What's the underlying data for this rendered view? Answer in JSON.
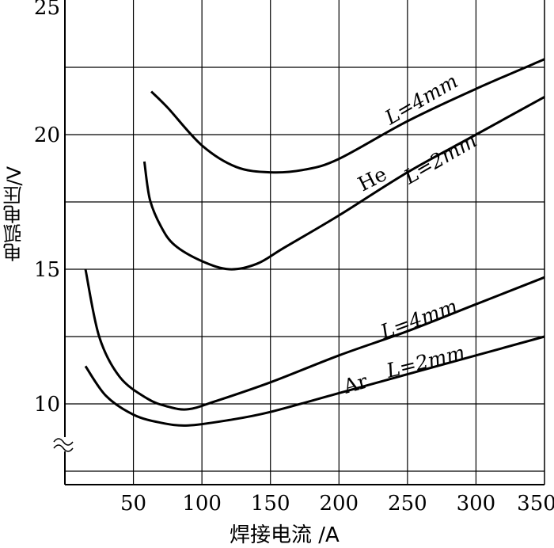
{
  "chart_data": {
    "type": "line",
    "xlabel": "焊接电流 /A",
    "ylabel": "电弧电压/V",
    "xlim": [
      0,
      350
    ],
    "ylim": [
      7,
      25
    ],
    "y_axis_break": true,
    "grid": true,
    "x_ticks": [
      50,
      100,
      150,
      200,
      250,
      300,
      350
    ],
    "y_ticks": [
      10,
      15,
      20,
      25
    ],
    "series": [
      {
        "name": "He L=4mm",
        "x": [
          63,
          75,
          100,
          125,
          150,
          175,
          200,
          250,
          300,
          350
        ],
        "y": [
          21.6,
          21.0,
          19.6,
          18.8,
          18.6,
          18.7,
          19.1,
          20.5,
          21.7,
          22.8
        ]
      },
      {
        "name": "He L=2mm",
        "x": [
          58,
          62,
          70,
          80,
          100,
          120,
          140,
          160,
          200,
          250,
          300,
          350
        ],
        "y": [
          19.0,
          17.6,
          16.6,
          15.9,
          15.3,
          15.0,
          15.2,
          15.8,
          17.0,
          18.6,
          20.0,
          21.4
        ]
      },
      {
        "name": "Ar L=4mm",
        "x": [
          15,
          25,
          40,
          60,
          75,
          90,
          110,
          150,
          200,
          250,
          300,
          350
        ],
        "y": [
          15.0,
          12.5,
          11.0,
          10.2,
          9.9,
          9.8,
          10.1,
          10.8,
          11.8,
          12.7,
          13.7,
          14.7
        ]
      },
      {
        "name": "Ar L=2mm",
        "x": [
          15,
          30,
          50,
          70,
          90,
          120,
          150,
          200,
          250,
          300,
          350
        ],
        "y": [
          11.4,
          10.3,
          9.6,
          9.3,
          9.2,
          9.4,
          9.7,
          10.4,
          11.1,
          11.8,
          12.5
        ]
      }
    ],
    "annotations": {
      "he_l4": "L=4mm",
      "he_l2": "L=2mm",
      "he": "He",
      "ar_l4": "L=4mm",
      "ar_l2": "L=2mm",
      "ar": "Ar"
    },
    "line_color": "#000000"
  }
}
